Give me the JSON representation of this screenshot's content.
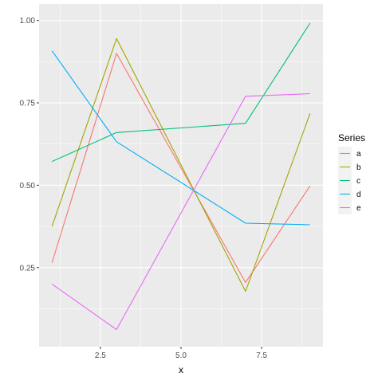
{
  "chart_data": {
    "type": "line",
    "xlabel": "x",
    "ylabel": "",
    "xlim": [
      0.6,
      9.4
    ],
    "ylim": [
      0.01,
      1.05
    ],
    "x_ticks": [
      2.5,
      5.0,
      7.5
    ],
    "x_tick_labels": [
      "2.5",
      "5.0",
      "7.5"
    ],
    "y_ticks": [
      0.25,
      0.5,
      0.75,
      1.0
    ],
    "y_tick_labels": [
      "0.25",
      "0.50",
      "0.75",
      "1.00"
    ],
    "grid": true,
    "legend": {
      "title": "Series",
      "position": "right"
    },
    "x": [
      1,
      3,
      7,
      9
    ],
    "series": [
      {
        "name": "a",
        "color": "#F8766D",
        "values": [
          0.265,
          0.9,
          0.205,
          0.498
        ]
      },
      {
        "name": "b",
        "color": "#A3A500",
        "values": [
          0.375,
          0.945,
          0.178,
          0.718
        ]
      },
      {
        "name": "c",
        "color": "#00BF7D",
        "values": [
          0.572,
          0.66,
          0.688,
          0.992
        ]
      },
      {
        "name": "d",
        "color": "#00B0F6",
        "values": [
          0.908,
          0.632,
          0.385,
          0.38
        ]
      },
      {
        "name": "e",
        "color": "#E76BF3",
        "values": [
          0.2,
          0.062,
          0.77,
          0.778
        ]
      }
    ]
  }
}
